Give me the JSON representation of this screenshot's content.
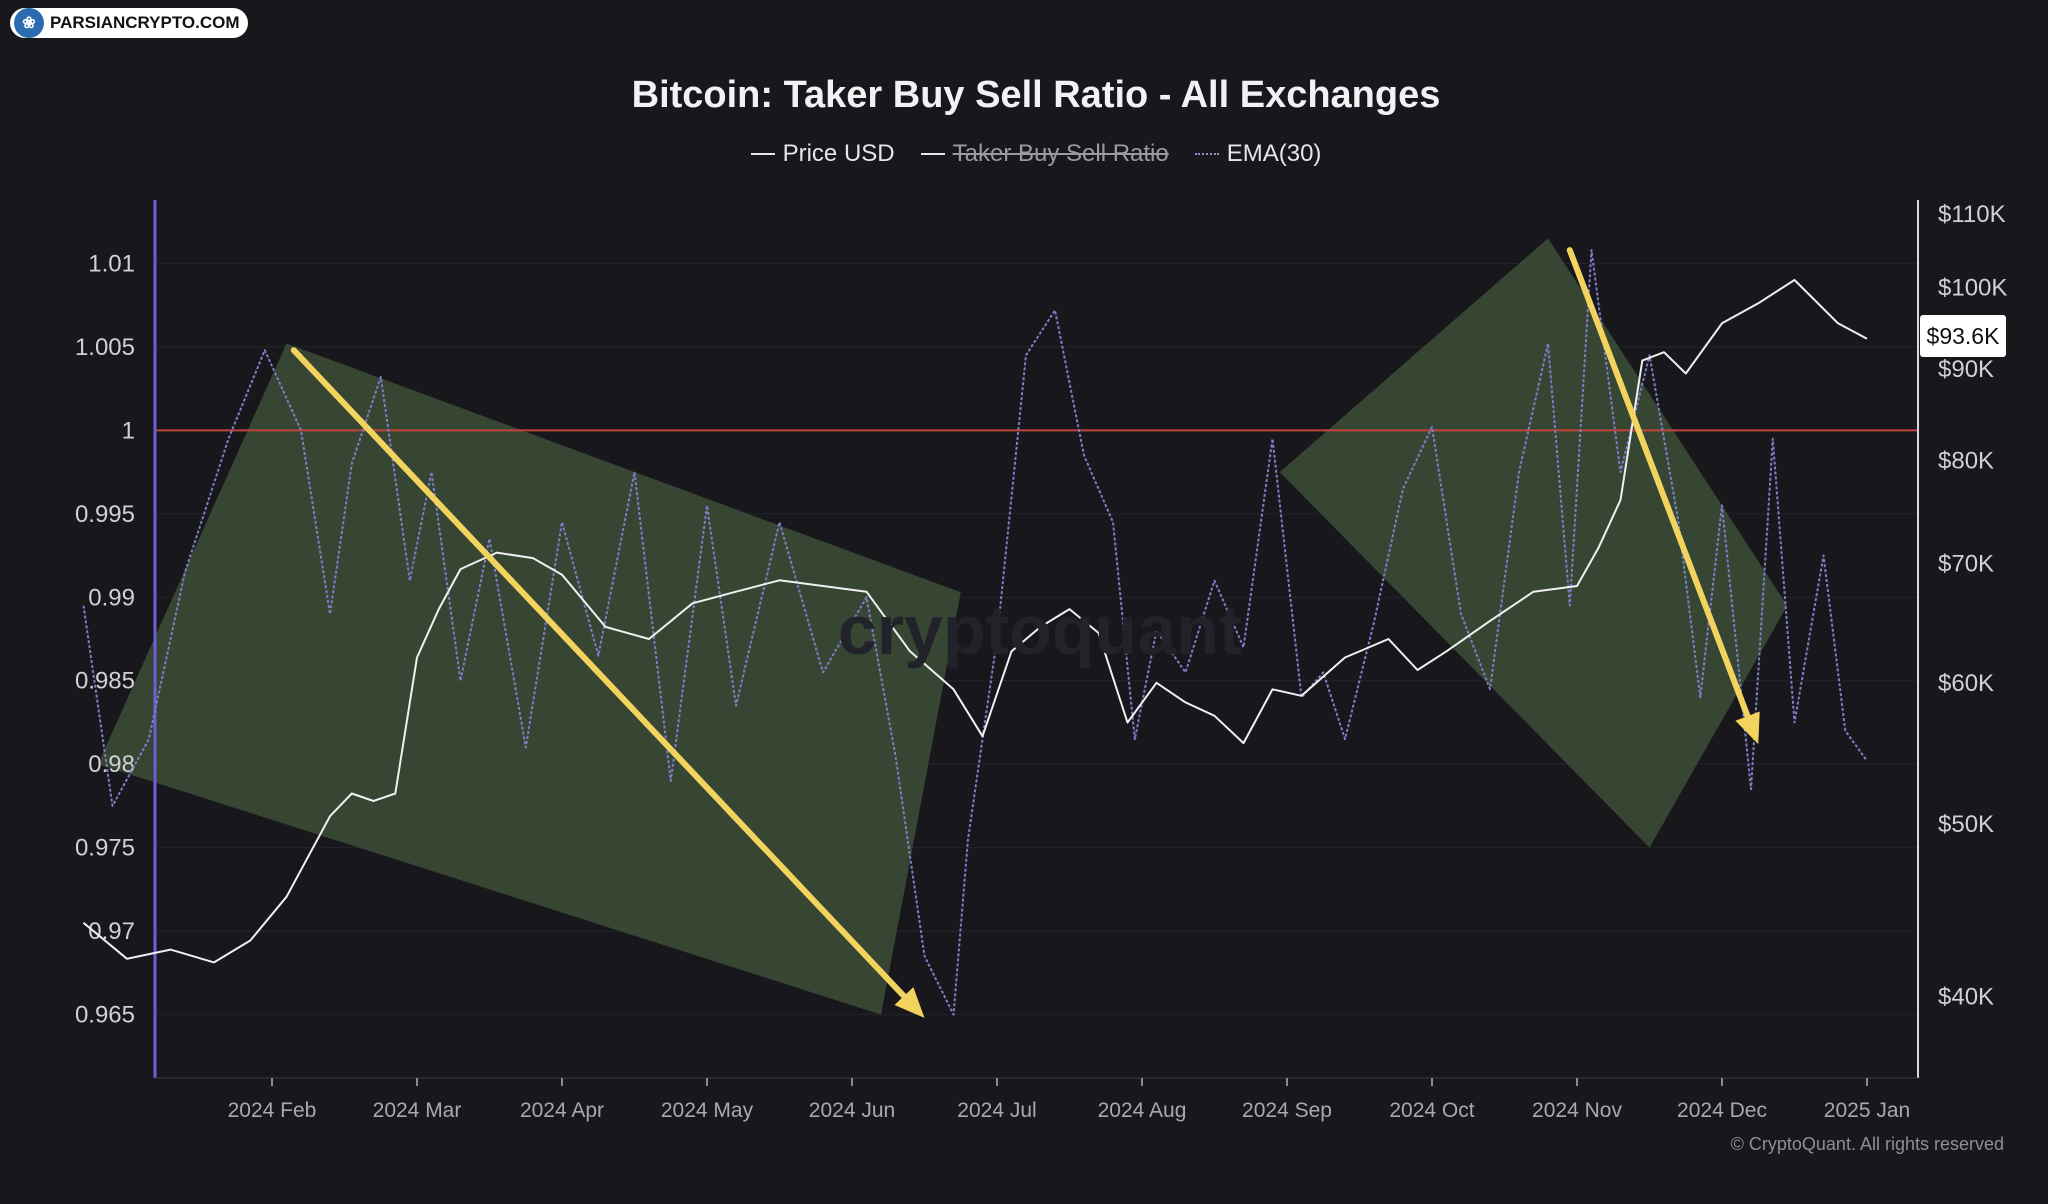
{
  "badge": {
    "text": "PARSIANCRYPTO.COM",
    "icon": "tree-logo-icon"
  },
  "watermark": "cryptoquant",
  "copyright": "© CryptoQuant. All rights reserved",
  "price_tag": "$93.6K",
  "colors": {
    "background": "#17171c",
    "price_line": "#f0f0f0",
    "ratio_line": "#7e7ec8",
    "reference_line": "#c0463c",
    "channel_fill": "#3e4f38",
    "arrow": "#f2d35e",
    "left_axis": "#6e5fd6"
  },
  "chart_data": {
    "type": "line",
    "title": "Bitcoin: Taker Buy Sell Ratio - All Exchanges",
    "legend": [
      {
        "label": "Price USD",
        "style": "solid",
        "hidden": false
      },
      {
        "label": "Taker Buy Sell Ratio",
        "style": "solid",
        "hidden": true
      },
      {
        "label": "EMA(30)",
        "style": "dotted",
        "hidden": false
      }
    ],
    "x_ticks": [
      "2024 Feb",
      "2024 Mar",
      "2024 Apr",
      "2024 May",
      "2024 Jun",
      "2024 Jul",
      "2024 Aug",
      "2024 Sep",
      "2024 Oct",
      "2024 Nov",
      "2024 Dec",
      "2025 Jan"
    ],
    "x_range": [
      -1.35,
      11.1
    ],
    "y_left": {
      "ticks": [
        1.01,
        1.005,
        1,
        0.995,
        0.99,
        0.985,
        0.98,
        0.975,
        0.97,
        0.965
      ],
      "range": [
        0.9612,
        1.0138
      ]
    },
    "y_right": {
      "ticks": [
        "$110K",
        "$100K",
        "$90K",
        "$80K",
        "$70K",
        "$60K",
        "$50K",
        "$40K"
      ],
      "values": [
        110000,
        100000,
        90000,
        80000,
        70000,
        60000,
        50000,
        40000
      ],
      "scale": "log",
      "range": [
        36000,
        112000
      ]
    },
    "reference_line": {
      "axis": "left",
      "value": 1
    },
    "series": [
      {
        "name": "Price USD",
        "axis": "right",
        "x": [
          -1.3,
          -1.0,
          -0.7,
          -0.4,
          -0.15,
          0.1,
          0.4,
          0.55,
          0.7,
          0.85,
          1.0,
          1.15,
          1.3,
          1.55,
          1.8,
          2.0,
          2.3,
          2.6,
          2.9,
          3.2,
          3.5,
          3.8,
          4.1,
          4.4,
          4.7,
          4.9,
          5.1,
          5.3,
          5.5,
          5.7,
          5.9,
          6.1,
          6.3,
          6.5,
          6.7,
          6.9,
          7.1,
          7.4,
          7.7,
          7.9,
          8.1,
          8.4,
          8.7,
          9.0,
          9.15,
          9.3,
          9.45,
          9.6,
          9.75,
          10.0,
          10.25,
          10.5,
          10.8,
          11.0
        ],
        "values": [
          44000,
          42000,
          42500,
          41800,
          43000,
          45500,
          50500,
          52000,
          51500,
          52000,
          62000,
          66000,
          69500,
          71000,
          70500,
          69000,
          64500,
          63500,
          66500,
          67500,
          68500,
          68000,
          67500,
          62500,
          59500,
          56000,
          62500,
          64500,
          66000,
          64000,
          57000,
          60000,
          58500,
          57500,
          55500,
          59500,
          59000,
          62000,
          63500,
          61000,
          62500,
          65000,
          67500,
          68000,
          71500,
          76000,
          91000,
          92000,
          89500,
          95500,
          98000,
          101000,
          95500,
          93600
        ]
      },
      {
        "name": "EMA(30)",
        "axis": "left",
        "x": [
          -1.3,
          -1.1,
          -0.85,
          -0.6,
          -0.3,
          -0.05,
          0.2,
          0.4,
          0.55,
          0.75,
          0.95,
          1.1,
          1.3,
          1.5,
          1.75,
          2.0,
          2.25,
          2.5,
          2.75,
          3.0,
          3.2,
          3.5,
          3.8,
          4.1,
          4.3,
          4.5,
          4.7,
          4.8,
          5.0,
          5.2,
          5.4,
          5.6,
          5.8,
          5.95,
          6.1,
          6.3,
          6.5,
          6.7,
          6.9,
          7.1,
          7.25,
          7.4,
          7.6,
          7.8,
          8.0,
          8.2,
          8.4,
          8.6,
          8.8,
          8.95,
          9.1,
          9.3,
          9.5,
          9.7,
          9.85,
          10.0,
          10.2,
          10.35,
          10.5,
          10.7,
          10.85,
          11.0
        ],
        "values": [
          0.9895,
          0.9775,
          0.9815,
          0.9915,
          0.9995,
          1.0048,
          1.0,
          0.989,
          0.998,
          1.0032,
          0.991,
          0.9975,
          0.985,
          0.9935,
          0.981,
          0.9945,
          0.9865,
          0.9975,
          0.979,
          0.9955,
          0.9835,
          0.9945,
          0.9855,
          0.99,
          0.9805,
          0.9685,
          0.965,
          0.9755,
          0.9875,
          1.0045,
          1.0072,
          0.9985,
          0.9945,
          0.9815,
          0.988,
          0.9855,
          0.991,
          0.987,
          0.9995,
          0.984,
          0.9855,
          0.9815,
          0.9885,
          0.9965,
          1.0002,
          0.989,
          0.9845,
          0.9975,
          1.0052,
          0.9895,
          1.0108,
          0.9975,
          1.0045,
          0.9945,
          0.984,
          0.9955,
          0.9785,
          0.9995,
          0.9825,
          0.9925,
          0.982,
          0.9802
        ]
      }
    ],
    "annotations": {
      "channels": [
        {
          "corners": [
            [
              -1.2,
              0.98
            ],
            [
              0.1,
              1.0052
            ],
            [
              4.75,
              0.9903
            ],
            [
              4.2,
              0.965
            ]
          ]
        },
        {
          "corners": [
            [
              6.95,
              0.9975
            ],
            [
              8.8,
              1.0115
            ],
            [
              10.45,
              0.9895
            ],
            [
              9.5,
              0.975
            ]
          ]
        }
      ],
      "arrows": [
        {
          "from": [
            0.15,
            1.0048
          ],
          "to": [
            4.5,
            0.9648
          ]
        },
        {
          "from": [
            8.95,
            1.0108
          ],
          "to": [
            10.25,
            0.9812
          ]
        }
      ]
    }
  }
}
